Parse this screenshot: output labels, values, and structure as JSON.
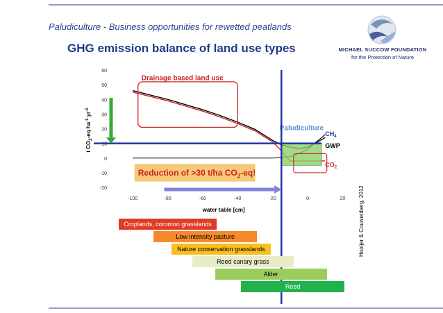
{
  "header": {
    "title": "Paludiculture - Business opportunities for rewetted peatlands",
    "subtitle": "GHG emission balance of land use types"
  },
  "logo": {
    "name": "MICHAEL SUCCOW FOUNDATION",
    "tagline": "for the Protection of Nature"
  },
  "citation": "Hooijer & Couwenberg, 2012",
  "colors": {
    "blue": "#2233aa",
    "green_box": "#8ed06a",
    "red": "#cc2222",
    "arrow_green": "#33aa33",
    "arrow_lavender": "#8080dd",
    "label_bg": "#f7c877"
  },
  "chart_data": {
    "type": "line",
    "xlabel": "water table [cm]",
    "ylabel": "t CO2-eq ha-1 yr-1",
    "xlim": [
      -110,
      25
    ],
    "ylim": [
      -20,
      60
    ],
    "xticks": [
      -100,
      -80,
      -60,
      -40,
      -20,
      0,
      20
    ],
    "yticks": [
      -20,
      -10,
      0,
      10,
      20,
      30,
      40,
      50,
      60
    ],
    "grid": false,
    "series": [
      {
        "name": "GWP",
        "color": "#000000",
        "x": [
          -100,
          -90,
          -80,
          -70,
          -60,
          -50,
          -40,
          -30,
          -20,
          -15,
          -10,
          -5,
          0,
          5,
          10
        ],
        "y": [
          46,
          43,
          40,
          36.5,
          33,
          29,
          24.5,
          19.5,
          12,
          9,
          7.5,
          6.5,
          7.5,
          10.5,
          14
        ]
      },
      {
        "name": "CO2",
        "color": "#cc2222",
        "x": [
          -100,
          -90,
          -80,
          -70,
          -60,
          -50,
          -40,
          -30,
          -20,
          -15,
          -10,
          -5,
          0,
          5,
          10
        ],
        "y": [
          45,
          42,
          39,
          35.5,
          32,
          28,
          23.5,
          18.5,
          11,
          5,
          -2,
          -2,
          -2,
          -2,
          -2
        ]
      },
      {
        "name": "CH4",
        "color": "#000000",
        "x": [
          -100,
          -80,
          -60,
          -40,
          -20,
          -10,
          -5,
          0,
          5,
          10
        ],
        "y": [
          0,
          0,
          0,
          0,
          0,
          1,
          3,
          6,
          11,
          16
        ]
      }
    ],
    "annotations": {
      "drainage": "Drainage based land use",
      "paludi": "Paludiculture",
      "reduction": "Reduction of >30 t/ha CO",
      "reduction_sub": "2",
      "reduction_end": "-eq!",
      "ch4": "CH",
      "ch4_sub": "4",
      "gwp": "GWP",
      "co2": "CO",
      "co2_sub": "2",
      "ylabel_parts": [
        "t CO",
        "2",
        "-eq ha",
        "-1",
        " yr",
        "-1"
      ]
    },
    "reference_lines": {
      "water_table_x": -15,
      "emission_y": 10
    }
  },
  "land_uses": [
    {
      "label": "Croplands, common grasslands",
      "color": "#e13b28",
      "text_color": "#ffffff",
      "from": -108,
      "to": -52
    },
    {
      "label": "Low intensity pasture",
      "color": "#f58a2c",
      "text_color": "#000000",
      "from": -88,
      "to": -29
    },
    {
      "label": "Nature conservation  grasslands",
      "color": "#f8bf1e",
      "text_color": "#000000",
      "from": -78,
      "to": -21
    },
    {
      "label": "Reed canary grass",
      "color": "#e6edc8",
      "text_color": "#000000",
      "from": -66,
      "to": -8
    },
    {
      "label": "Alder",
      "color": "#9ccc5c",
      "text_color": "#000000",
      "from": -53,
      "to": 11
    },
    {
      "label": "Reed",
      "color": "#21b24b",
      "text_color": "#ffffff",
      "from": -38,
      "to": 21
    }
  ]
}
